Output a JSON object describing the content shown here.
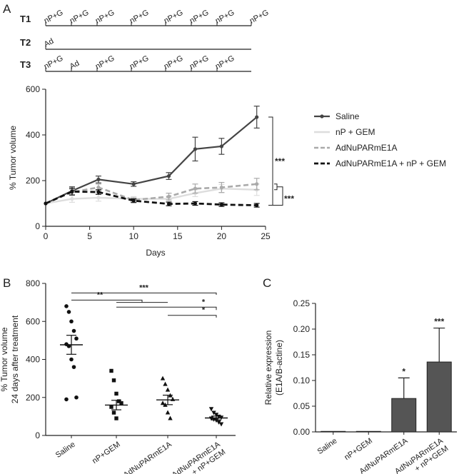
{
  "panels": {
    "a": "A",
    "b": "B",
    "c": "C"
  },
  "timeline": {
    "rows": [
      {
        "label": "T1",
        "ticks": [
          "nP+G",
          "nP+G",
          "nP+G",
          "nP+G",
          "nP+G",
          "nP+G",
          "nP+G",
          "nP+G"
        ]
      },
      {
        "label": "T2",
        "ticks": [
          "Ad"
        ]
      },
      {
        "label": "T3",
        "ticks": [
          "nP+G",
          "Ad",
          "nP+G",
          "nP+G",
          "nP+G",
          "nP+G",
          "nP+G"
        ]
      }
    ]
  },
  "chart_data": [
    {
      "type": "line",
      "xlabel": "Days",
      "ylabel": "% Tumor volume",
      "xlim": [
        0,
        25
      ],
      "ylim": [
        0,
        600
      ],
      "xticks": [
        "0",
        "5",
        "10",
        "15",
        "20",
        "25"
      ],
      "yticks": [
        "0",
        "200",
        "400",
        "600"
      ],
      "legend_position": "right",
      "x": [
        0,
        3,
        6,
        10,
        14,
        17,
        20,
        24
      ],
      "series": [
        {
          "name": "Saline",
          "color": "#444444",
          "style": "solid-dot",
          "values": [
            100,
            155,
            205,
            185,
            220,
            338,
            350,
            478
          ],
          "errors": [
            0,
            18,
            15,
            10,
            15,
            52,
            35,
            48
          ]
        },
        {
          "name": "nP + GEM",
          "color": "#dddddd",
          "style": "solid",
          "values": [
            100,
            120,
            125,
            120,
            120,
            145,
            165,
            160
          ],
          "errors": [
            0,
            15,
            15,
            10,
            12,
            15,
            18,
            25
          ]
        },
        {
          "name": "AdNuPARmE1A",
          "color": "#aaaaaa",
          "style": "dashed",
          "values": [
            100,
            150,
            170,
            115,
            130,
            165,
            170,
            185
          ],
          "errors": [
            0,
            12,
            15,
            10,
            15,
            20,
            22,
            25
          ]
        },
        {
          "name": "AdNuPARmE1A + nP + GEM",
          "color": "#111111",
          "style": "dashed-bold",
          "values": [
            100,
            152,
            150,
            112,
            98,
            100,
            95,
            92
          ],
          "errors": [
            0,
            15,
            10,
            8,
            8,
            8,
            8,
            8
          ]
        }
      ],
      "annotations": [
        "***",
        "***"
      ]
    },
    {
      "type": "scatter",
      "ylabel": "% Tumor volume\n24 days after treatment",
      "ylim": [
        0,
        800
      ],
      "yticks": [
        "0",
        "200",
        "400",
        "600",
        "800"
      ],
      "categories": [
        "Saline",
        "nP+GEM",
        "AdNuPARmE1A",
        "AdNuPARmE1A\n+ nP+GEM"
      ],
      "points": [
        [
          680,
          650,
          600,
          550,
          510,
          480,
          470,
          400,
          360,
          200,
          190
        ],
        [
          340,
          290,
          220,
          180,
          170,
          150,
          120,
          90
        ],
        [
          300,
          270,
          240,
          210,
          190,
          170,
          160,
          120,
          90
        ],
        [
          140,
          120,
          110,
          100,
          95,
          90,
          85,
          80,
          70,
          60
        ]
      ],
      "means": [
        477,
        160,
        187,
        92
      ],
      "sem": [
        50,
        25,
        25,
        10
      ],
      "markers": [
        "circle",
        "square",
        "triangle-up",
        "triangle-down"
      ],
      "significance": [
        "***",
        "**",
        "*",
        "*"
      ]
    },
    {
      "type": "bar",
      "ylabel": "Relative expression\n(E1A/B-actine)",
      "ylim": [
        0,
        0.25
      ],
      "yticks": [
        "0.00",
        "0.05",
        "0.10",
        "0.15",
        "0.20",
        "0.25"
      ],
      "categories": [
        "Saline",
        "nP+GEM",
        "AdNuPARmE1A",
        "AdNuPARmE1A\n+ nP+GEM"
      ],
      "values": [
        0.001,
        0.001,
        0.065,
        0.136
      ],
      "errors": [
        0,
        0,
        0.04,
        0.066
      ],
      "significance": [
        "",
        "",
        "*",
        "***"
      ],
      "bar_color": "#555555"
    }
  ]
}
